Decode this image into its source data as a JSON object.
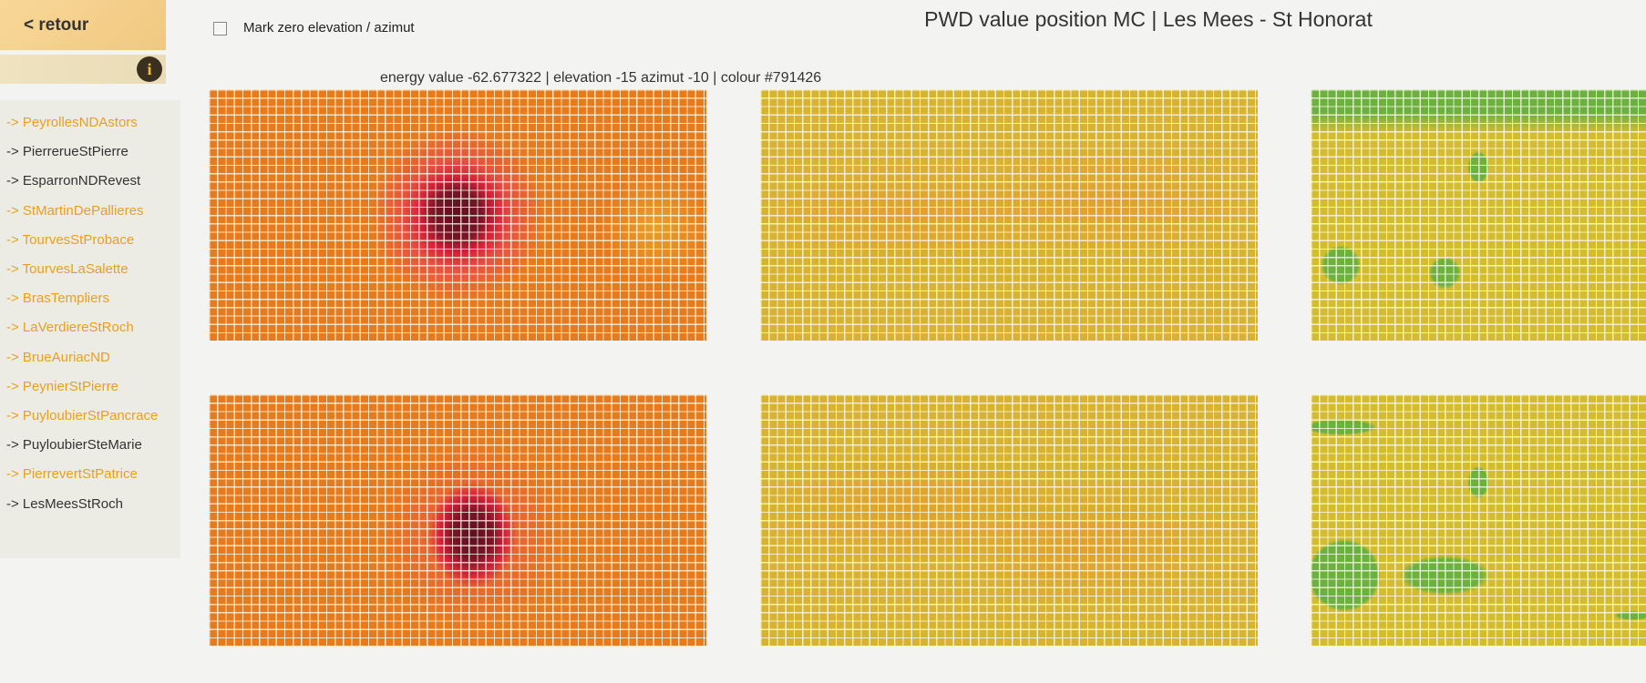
{
  "header": {
    "back": "< retour",
    "checkbox_label": "Mark zero elevation / azimut",
    "title": "PWD value position MC | Les Mees - St Honorat",
    "status": "energy value -62.677322 | elevation -15 azimut -10 | colour #791426"
  },
  "sidebar": {
    "links": [
      "-> PeyrollesNDAstors",
      "-> PierrerueStPierre",
      "-> EsparronNDRevest",
      "-> StMartinDePallieres",
      "-> TourvesStProbace",
      "-> TourvesLaSalette",
      "-> BrasTempliers",
      "-> LaVerdiereStRoch",
      "-> BrueAuriacND",
      "-> PeynierStPierre",
      "-> PuyloubierStPancrace",
      "-> PuyloubierSteMarie",
      "-> PierrevertStPatrice",
      "-> LesMeesStRoch"
    ]
  }
}
